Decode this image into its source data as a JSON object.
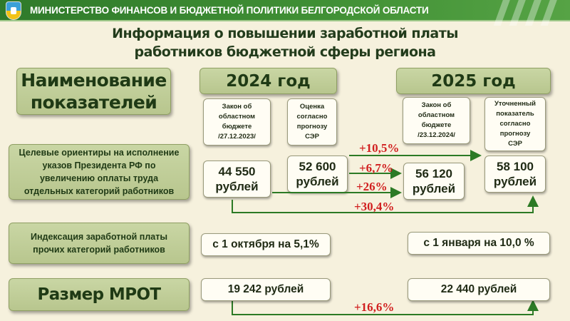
{
  "header": {
    "title": "МИНИСТЕРСТВО ФИНАНСОВ И БЮДЖЕТНОЙ ПОЛИТИКИ БЕЛГОРОДСКОЙ ОБЛАСТИ"
  },
  "title": {
    "line1": "Информация о повышении заработной платы",
    "line2": "работников бюджетной сферы региона"
  },
  "indicators_header": {
    "line1": "Наименование",
    "line2": "показателей"
  },
  "years": {
    "y2024": "2024 год",
    "y2025": "2025 год"
  },
  "notes": {
    "law2024": [
      "Закон об",
      "областном",
      "бюджете",
      "/27.12.2023/"
    ],
    "estimate2024": [
      "Оценка",
      "согласно",
      "прогнозу",
      "СЭР"
    ],
    "law2025": [
      "Закон об",
      "областном",
      "бюджете",
      "/23.12.2024/"
    ],
    "refined2025": [
      "Уточненный",
      "показатель",
      "согласно",
      "прогнозу",
      "СЭР"
    ]
  },
  "rows": {
    "targets": {
      "label": [
        "Целевые ориентиры на исполнение",
        "указов Президента РФ по",
        "увеличению оплаты труда",
        "отдельных категорий работников"
      ],
      "law2024": [
        "44 550",
        "рублей"
      ],
      "estimate2024": [
        "52 600",
        "рублей"
      ],
      "law2025": [
        "56 120",
        "рублей"
      ],
      "refined2025": [
        "58 100",
        "рублей"
      ]
    },
    "indexation": {
      "label": [
        "Индексация заработной платы",
        "прочих категорий работников"
      ],
      "y2024": "с 1 октября на 5,1%",
      "y2025": "с 1 января на 10,0 %"
    },
    "mrot": {
      "label": "Размер МРОТ",
      "y2024": "19 242  рублей",
      "y2025": "22 440 рублей"
    }
  },
  "growth": {
    "a": "+10,5%",
    "b": "+6,7%",
    "c": "+26%",
    "d": "+30,4%",
    "e": "+16,6%"
  },
  "colors": {
    "header_green": "#3f8f34",
    "box_green": "#c9d6a4",
    "accent_red": "#d11f1f",
    "arrow_green": "#2c7a25"
  }
}
